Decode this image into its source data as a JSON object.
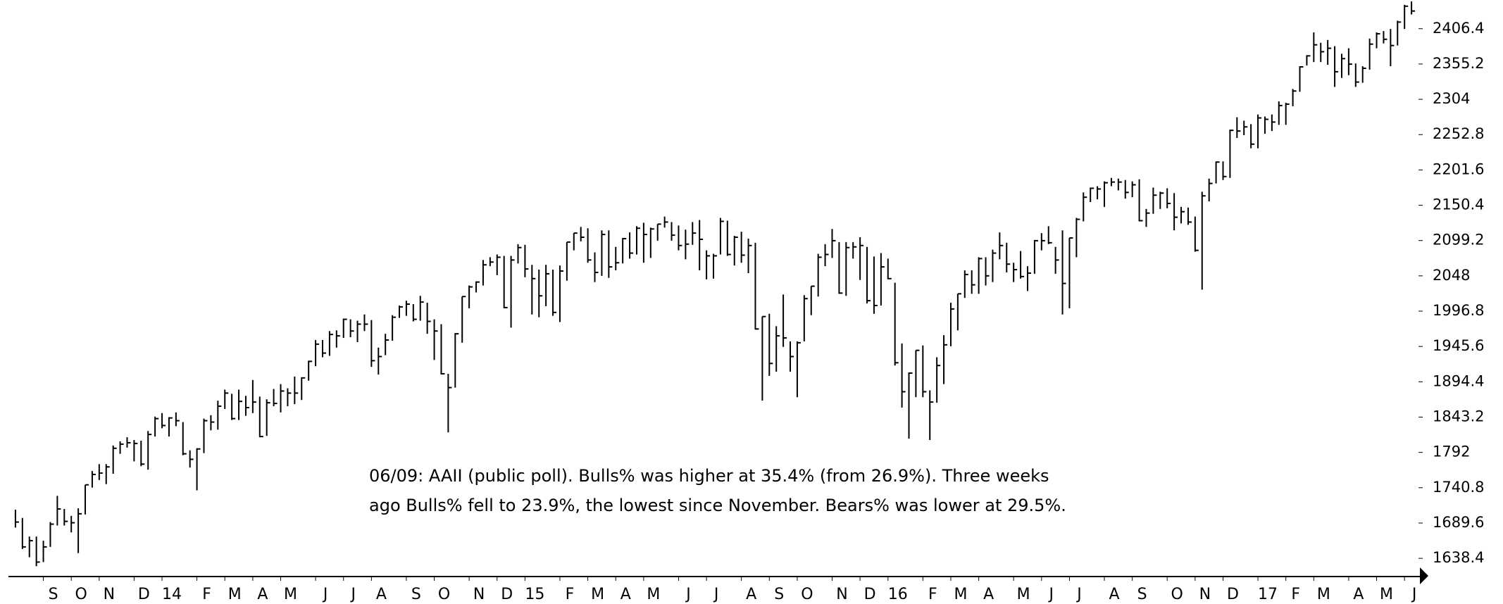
{
  "chart_data": {
    "type": "hlc",
    "annotation": [
      "06/09: AAII (public poll). Bulls% was higher at 35.4% (from 26.9%). Three weeks",
      "ago Bulls% fell to 23.9%, the lowest since November. Bears% was lower at 29.5%."
    ],
    "color": "#000000",
    "xlim": [
      -1,
      201
    ],
    "xticks": [
      {
        "value": 4,
        "label": "S"
      },
      {
        "value": 8,
        "label": "O"
      },
      {
        "value": 12,
        "label": "N"
      },
      {
        "value": 17,
        "label": "D"
      },
      {
        "value": 21,
        "label": "14"
      },
      {
        "value": 26,
        "label": "F"
      },
      {
        "value": 30,
        "label": "M"
      },
      {
        "value": 34,
        "label": "A"
      },
      {
        "value": 38,
        "label": "M"
      },
      {
        "value": 43,
        "label": "J"
      },
      {
        "value": 47,
        "label": "J"
      },
      {
        "value": 51,
        "label": "A"
      },
      {
        "value": 56,
        "label": "S"
      },
      {
        "value": 60,
        "label": "O"
      },
      {
        "value": 65,
        "label": "N"
      },
      {
        "value": 69,
        "label": "D"
      },
      {
        "value": 73,
        "label": "15"
      },
      {
        "value": 78,
        "label": "F"
      },
      {
        "value": 82,
        "label": "M"
      },
      {
        "value": 86,
        "label": "A"
      },
      {
        "value": 90,
        "label": "M"
      },
      {
        "value": 95,
        "label": "J"
      },
      {
        "value": 99,
        "label": "J"
      },
      {
        "value": 104,
        "label": "A"
      },
      {
        "value": 108,
        "label": "S"
      },
      {
        "value": 112,
        "label": "O"
      },
      {
        "value": 117,
        "label": "N"
      },
      {
        "value": 121,
        "label": "D"
      },
      {
        "value": 125,
        "label": "16"
      },
      {
        "value": 130,
        "label": "F"
      },
      {
        "value": 134,
        "label": "M"
      },
      {
        "value": 138,
        "label": "A"
      },
      {
        "value": 143,
        "label": "M"
      },
      {
        "value": 147,
        "label": "J"
      },
      {
        "value": 151,
        "label": "J"
      },
      {
        "value": 156,
        "label": "A"
      },
      {
        "value": 160,
        "label": "S"
      },
      {
        "value": 165,
        "label": "O"
      },
      {
        "value": 169,
        "label": "N"
      },
      {
        "value": 173,
        "label": "D"
      },
      {
        "value": 178,
        "label": "17"
      },
      {
        "value": 182,
        "label": "F"
      },
      {
        "value": 186,
        "label": "M"
      },
      {
        "value": 191,
        "label": "A"
      },
      {
        "value": 195,
        "label": "M"
      },
      {
        "value": 199,
        "label": "J"
      }
    ],
    "ylim": [
      1612,
      2448
    ],
    "yticks": [
      1638.4,
      1689.6,
      1740.8,
      1792,
      1843.2,
      1894.4,
      1945.6,
      1996.8,
      2048,
      2099.2,
      2150.4,
      2201.6,
      2252.8,
      2304,
      2355.2,
      2406.4
    ],
    "close": [
      1691,
      1655,
      1664,
      1633,
      1655,
      1688,
      1710,
      1692,
      1690,
      1703,
      1745,
      1760,
      1762,
      1771,
      1798,
      1804,
      1806,
      1805,
      1775,
      1818,
      1841,
      1831,
      1842,
      1838,
      1790,
      1782,
      1797,
      1838,
      1836,
      1859,
      1878,
      1841,
      1866,
      1857,
      1865,
      1815,
      1864,
      1863,
      1881,
      1878,
      1878,
      1900,
      1924,
      1949,
      1936,
      1963,
      1961,
      1985,
      1968,
      1978,
      1978,
      1925,
      1931,
      1955,
      1988,
      2003,
      2007,
      1985,
      2010,
      1982,
      1968,
      1906,
      1886,
      1964,
      2018,
      2032,
      2039,
      2064,
      2068,
      2075,
      2002,
      2071,
      2089,
      2058,
      2044,
      2019,
      2051,
      1995,
      2055,
      2097,
      2110,
      2104,
      2071,
      2053,
      2108,
      2061,
      2067,
      2102,
      2081,
      2117,
      2108,
      2116,
      2123,
      2126,
      2107,
      2092,
      2094,
      2110,
      2101,
      2077,
      2077,
      2127,
      2079,
      2104,
      2078,
      2092,
      1971,
      1989,
      1921,
      1961,
      1958,
      1931,
      1951,
      2015,
      2033,
      2075,
      2079,
      2099,
      2023,
      2089,
      2090,
      2092,
      2012,
      2005,
      2061,
      2044,
      1922,
      1880,
      1907,
      1940,
      1880,
      1865,
      1918,
      1948,
      2000,
      2022,
      2050,
      2035,
      2073,
      2048,
      2081,
      2092,
      2065,
      2057,
      2047,
      2052,
      2099,
      2099,
      2096,
      2071,
      2037,
      2103,
      2130,
      2162,
      2175,
      2174,
      2183,
      2184,
      2184,
      2169,
      2180,
      2128,
      2139,
      2165,
      2168,
      2153,
      2133,
      2141,
      2126,
      2085,
      2164,
      2182,
      2213,
      2192,
      2259,
      2258,
      2264,
      2239,
      2277,
      2275,
      2271,
      2295,
      2297,
      2316,
      2351,
      2367,
      2383,
      2373,
      2378,
      2344,
      2363,
      2355,
      2329,
      2349,
      2384,
      2399,
      2391,
      2382,
      2416,
      2439,
      2432
    ],
    "high": [
      1709,
      1697,
      1670,
      1670,
      1664,
      1691,
      1729,
      1710,
      1700,
      1711,
      1745,
      1765,
      1775,
      1775,
      1802,
      1808,
      1814,
      1810,
      1809,
      1823,
      1844,
      1849,
      1843,
      1850,
      1836,
      1795,
      1798,
      1841,
      1846,
      1867,
      1883,
      1877,
      1883,
      1874,
      1897,
      1873,
      1869,
      1884,
      1891,
      1885,
      1902,
      1901,
      1925,
      1955,
      1955,
      1968,
      1969,
      1986,
      1985,
      1983,
      1992,
      1984,
      1944,
      1964,
      1991,
      2005,
      2012,
      2007,
      2019,
      2009,
      1985,
      1978,
      1906,
      1965,
      2018,
      2034,
      2040,
      2071,
      2075,
      2079,
      2077,
      2077,
      2094,
      2093,
      2064,
      2057,
      2064,
      2057,
      2063,
      2097,
      2110,
      2119,
      2117,
      2082,
      2114,
      2114,
      2090,
      2103,
      2111,
      2120,
      2125,
      2118,
      2123,
      2134,
      2126,
      2121,
      2115,
      2126,
      2129,
      2085,
      2080,
      2132,
      2128,
      2106,
      2112,
      2102,
      2096,
      1989,
      1993,
      1975,
      2021,
      1953,
      1953,
      2020,
      2033,
      2080,
      2094,
      2116,
      2097,
      2097,
      2097,
      2104,
      2090,
      2076,
      2081,
      2073,
      2038,
      1950,
      1908,
      1940,
      1947,
      1882,
      1930,
      1962,
      2009,
      2022,
      2056,
      2056,
      2075,
      2075,
      2086,
      2111,
      2096,
      2067,
      2084,
      2062,
      2100,
      2110,
      2120,
      2090,
      2114,
      2103,
      2132,
      2169,
      2176,
      2178,
      2185,
      2190,
      2189,
      2187,
      2185,
      2188,
      2145,
      2176,
      2170,
      2175,
      2168,
      2148,
      2147,
      2134,
      2170,
      2189,
      2214,
      2214,
      2260,
      2278,
      2273,
      2268,
      2282,
      2279,
      2282,
      2301,
      2299,
      2319,
      2352,
      2368,
      2401,
      2386,
      2390,
      2381,
      2370,
      2378,
      2356,
      2352,
      2392,
      2401,
      2403,
      2406,
      2418,
      2441,
      2446
    ],
    "low": [
      1683,
      1652,
      1640,
      1627,
      1633,
      1655,
      1686,
      1686,
      1676,
      1646,
      1702,
      1741,
      1752,
      1746,
      1761,
      1790,
      1799,
      1779,
      1772,
      1767,
      1815,
      1827,
      1815,
      1830,
      1788,
      1770,
      1737,
      1791,
      1824,
      1825,
      1855,
      1839,
      1839,
      1845,
      1849,
      1814,
      1816,
      1859,
      1850,
      1859,
      1862,
      1868,
      1896,
      1917,
      1930,
      1932,
      1944,
      1958,
      1959,
      1952,
      1968,
      1916,
      1905,
      1933,
      1954,
      1987,
      1990,
      1982,
      1983,
      1964,
      1926,
      1905,
      1821,
      1886,
      1951,
      2001,
      2024,
      2034,
      2062,
      2049,
      2001,
      1973,
      2066,
      2046,
      1992,
      1988,
      2004,
      1990,
      1981,
      2041,
      2085,
      2098,
      2067,
      2039,
      2048,
      2045,
      2056,
      2066,
      2073,
      2079,
      2067,
      2074,
      2099,
      2118,
      2099,
      2085,
      2072,
      2093,
      2056,
      2043,
      2044,
      2079,
      2077,
      2063,
      2067,
      2052,
      1970,
      1867,
      1903,
      1909,
      1945,
      1909,
      1872,
      1953,
      1991,
      2018,
      2062,
      2074,
      2022,
      2019,
      2073,
      2042,
      2008,
      1993,
      2005,
      2043,
      1918,
      1857,
      1812,
      1872,
      1872,
      1810,
      1864,
      1891,
      1946,
      1969,
      2016,
      2022,
      2022,
      2034,
      2039,
      2072,
      2053,
      2039,
      2044,
      2026,
      2051,
      2085,
      2094,
      2051,
      1992,
      2001,
      2075,
      2127,
      2155,
      2159,
      2148,
      2178,
      2172,
      2160,
      2162,
      2127,
      2119,
      2138,
      2145,
      2146,
      2114,
      2124,
      2122,
      2083,
      2028,
      2156,
      2182,
      2187,
      2190,
      2248,
      2252,
      2233,
      2233,
      2254,
      2258,
      2267,
      2267,
      2294,
      2315,
      2353,
      2358,
      2358,
      2354,
      2322,
      2335,
      2339,
      2322,
      2328,
      2347,
      2378,
      2385,
      2352,
      2382,
      2406,
      2427
    ]
  }
}
